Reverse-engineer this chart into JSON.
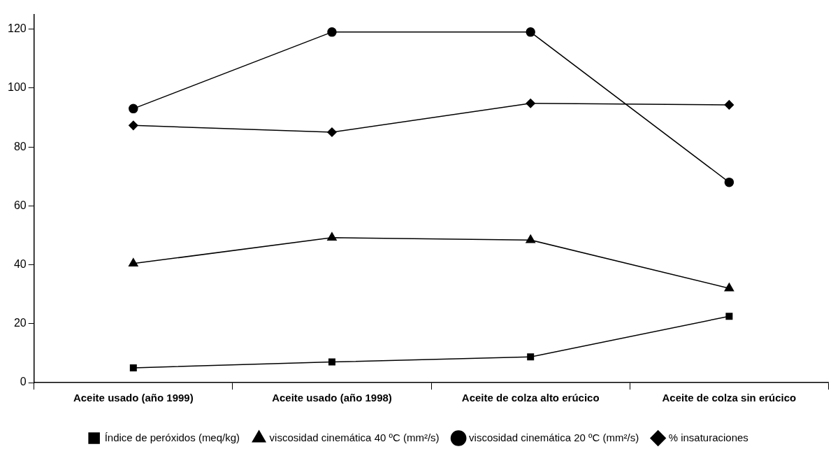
{
  "chart_data": {
    "type": "line",
    "categories": [
      "Aceite usado (año 1999)",
      "Aceite usado (año 1998)",
      "Aceite de colza alto erúcico",
      "Aceite de colza sin erúcico"
    ],
    "series": [
      {
        "name": "Índice de peróxidos (meq/kg)",
        "color": "#000000",
        "marker": "square",
        "values": [
          5,
          7,
          8.7,
          22.5
        ]
      },
      {
        "name": "viscosidad cinemática 40 ºC (mm²/s)",
        "color": "#000000",
        "marker": "triangle",
        "values": [
          40.4,
          49.2,
          48.4,
          32
        ]
      },
      {
        "name": "viscosidad cinemática 20 ºC (mm²/s)",
        "color": "#000000",
        "marker": "circle",
        "values": [
          93,
          119,
          119,
          68
        ]
      },
      {
        "name": "% insaturaciones",
        "color": "#000000",
        "marker": "diamond",
        "values": [
          87.3,
          85,
          94.8,
          94.3
        ]
      }
    ],
    "ylim": [
      0,
      125
    ],
    "yticks": [
      0,
      20,
      40,
      60,
      80,
      100,
      120
    ],
    "grid": false,
    "legend": "bottom",
    "line_style": "solid"
  }
}
